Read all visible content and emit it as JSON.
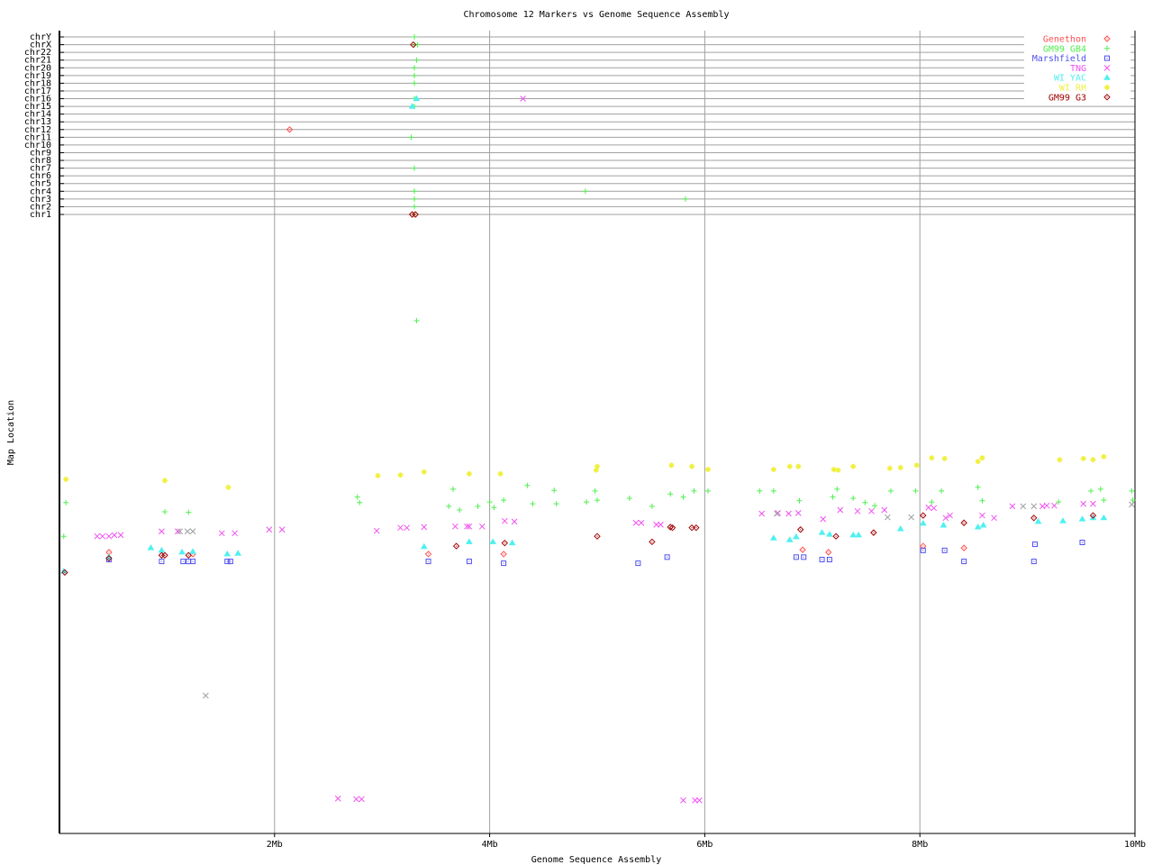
{
  "chart_data": {
    "type": "scatter",
    "title": "Chromosome 12 Markers vs Genome Sequence Assembly",
    "xlabel": "Genome Sequence Assembly",
    "ylabel": "Map Location",
    "xlim": [
      0,
      10
    ],
    "x_unit": "Mb",
    "x_ticks": [
      {
        "value": 2,
        "label": "2Mb"
      },
      {
        "value": 4,
        "label": "4Mb"
      },
      {
        "value": 6,
        "label": "6Mb"
      },
      {
        "value": 8,
        "label": "8Mb"
      },
      {
        "value": 10,
        "label": "10Mb"
      }
    ],
    "chromosome_labels": [
      "chr1",
      "chr2",
      "chr3",
      "chr4",
      "chr5",
      "chr6",
      "chr7",
      "chr8",
      "chr9",
      "chr10",
      "chr11",
      "chr12",
      "chr13",
      "chr14",
      "chr15",
      "chr16",
      "chr17",
      "chr18",
      "chr19",
      "chr20",
      "chr21",
      "chr22",
      "chrX",
      "chrY"
    ],
    "map_location_range": [
      0,
      100
    ],
    "grid": true,
    "legend_placement": "top-right",
    "series": [
      {
        "name": "Genethon",
        "color": "#ff5050",
        "marker": "diamond",
        "chrom_hits": [
          [
            "chr12",
            2.14
          ]
        ],
        "points": [
          [
            0.46,
            45.9
          ],
          [
            1.24,
            45.6
          ],
          [
            3.43,
            45.6
          ],
          [
            4.13,
            45.6
          ],
          [
            6.91,
            46.3
          ],
          [
            7.15,
            45.9
          ],
          [
            8.03,
            46.9
          ],
          [
            8.41,
            46.6
          ]
        ]
      },
      {
        "name": "GM99 GB4",
        "color": "#50f050",
        "marker": "plus",
        "chrom_hits": [
          [
            "chrY",
            3.3
          ],
          [
            "chrX",
            3.3
          ],
          [
            "chrX",
            3.33
          ],
          [
            "chr21",
            3.32
          ],
          [
            "chr20",
            3.3
          ],
          [
            "chr19",
            3.3
          ],
          [
            "chr18",
            3.3
          ],
          [
            "chr16",
            3.3
          ],
          [
            "chr15",
            3.3
          ],
          [
            "chr11",
            3.27
          ],
          [
            "chr7",
            3.3
          ],
          [
            "chr4",
            3.3
          ],
          [
            "chr4",
            4.89
          ],
          [
            "chr3",
            3.3
          ],
          [
            "chr3",
            5.82
          ],
          [
            "chr2",
            3.3
          ],
          [
            "chr1",
            3.3
          ]
        ],
        "points": [
          [
            0.04,
            48.5
          ],
          [
            0.06,
            54
          ],
          [
            0.98,
            52.5
          ],
          [
            1.2,
            52.4
          ],
          [
            2.77,
            54.9
          ],
          [
            2.79,
            54
          ],
          [
            3.62,
            53.4
          ],
          [
            3.72,
            52.8
          ],
          [
            3.66,
            56.2
          ],
          [
            3.89,
            53.4
          ],
          [
            4.0,
            54.1
          ],
          [
            4.04,
            53.2
          ],
          [
            4.13,
            54.4
          ],
          [
            4.35,
            56.8
          ],
          [
            4.4,
            53.8
          ],
          [
            4.62,
            53.8
          ],
          [
            4.6,
            56
          ],
          [
            4.9,
            54.1
          ],
          [
            4.98,
            55.9
          ],
          [
            5.0,
            54.4
          ],
          [
            5.3,
            54.7
          ],
          [
            5.51,
            53.4
          ],
          [
            5.68,
            55.4
          ],
          [
            5.8,
            54.9
          ],
          [
            5.9,
            55.9
          ],
          [
            6.03,
            55.9
          ],
          [
            6.51,
            55.9
          ],
          [
            6.64,
            55.9
          ],
          [
            6.88,
            54.3
          ],
          [
            7.19,
            54.9
          ],
          [
            7.23,
            56.2
          ],
          [
            7.38,
            54.7
          ],
          [
            7.49,
            54
          ],
          [
            7.58,
            53.5
          ],
          [
            7.73,
            55.9
          ],
          [
            7.96,
            55.9
          ],
          [
            8.11,
            54.1
          ],
          [
            8.2,
            55.9
          ],
          [
            8.54,
            56.5
          ],
          [
            8.58,
            54.3
          ],
          [
            9.29,
            54.1
          ],
          [
            9.59,
            55.9
          ],
          [
            9.68,
            56.2
          ],
          [
            9.71,
            54.4
          ],
          [
            9.97,
            55.9
          ],
          [
            9.98,
            54.4
          ],
          [
            3.32,
            83.7
          ]
        ]
      },
      {
        "name": "Marshfield",
        "color": "#5050f0",
        "marker": "square",
        "chrom_hits": [],
        "points": [
          [
            0.46,
            44.7
          ],
          [
            0.95,
            44.4
          ],
          [
            1.15,
            44.4
          ],
          [
            1.2,
            44.4
          ],
          [
            1.24,
            44.4
          ],
          [
            1.56,
            44.4
          ],
          [
            1.59,
            44.4
          ],
          [
            3.43,
            44.4
          ],
          [
            3.81,
            44.4
          ],
          [
            4.13,
            44.1
          ],
          [
            5.38,
            44.1
          ],
          [
            5.65,
            45.1
          ],
          [
            6.85,
            45.1
          ],
          [
            6.92,
            45.1
          ],
          [
            7.09,
            44.7
          ],
          [
            7.16,
            44.7
          ],
          [
            8.03,
            46.2
          ],
          [
            8.23,
            46.2
          ],
          [
            8.41,
            44.4
          ],
          [
            9.06,
            44.4
          ],
          [
            9.07,
            47.2
          ],
          [
            9.51,
            47.5
          ]
        ]
      },
      {
        "name": "TNG",
        "color": "#f050f0",
        "marker": "x",
        "chrom_hits": [
          [
            "chr16",
            4.31
          ]
        ],
        "points": [
          [
            0.35,
            48.5
          ],
          [
            0.4,
            48.5
          ],
          [
            0.46,
            48.5
          ],
          [
            0.51,
            48.7
          ],
          [
            0.57,
            48.7
          ],
          [
            0.95,
            49.3
          ],
          [
            1.1,
            49.3
          ],
          [
            1.51,
            49
          ],
          [
            1.63,
            49
          ],
          [
            1.95,
            49.6
          ],
          [
            2.07,
            49.6
          ],
          [
            2.95,
            49.4
          ],
          [
            3.17,
            49.9
          ],
          [
            3.23,
            49.9
          ],
          [
            3.39,
            50
          ],
          [
            3.68,
            50.1
          ],
          [
            3.79,
            50.1
          ],
          [
            3.81,
            50.1
          ],
          [
            3.93,
            50.1
          ],
          [
            4.14,
            51
          ],
          [
            4.23,
            50.9
          ],
          [
            2.59,
            5.7
          ],
          [
            2.76,
            5.6
          ],
          [
            2.81,
            5.6
          ],
          [
            5.8,
            5.4
          ],
          [
            5.91,
            5.4
          ],
          [
            5.95,
            5.4
          ],
          [
            5.36,
            50.7
          ],
          [
            5.41,
            50.7
          ],
          [
            5.55,
            50.4
          ],
          [
            5.59,
            50.4
          ],
          [
            6.53,
            52.2
          ],
          [
            6.68,
            52.3
          ],
          [
            6.78,
            52.2
          ],
          [
            6.87,
            52.3
          ],
          [
            7.1,
            51.3
          ],
          [
            7.26,
            52.8
          ],
          [
            7.42,
            52.6
          ],
          [
            7.55,
            52.6
          ],
          [
            7.67,
            52.8
          ],
          [
            8.08,
            53.2
          ],
          [
            8.13,
            53.1
          ],
          [
            8.24,
            51.5
          ],
          [
            8.28,
            51.9
          ],
          [
            8.58,
            51.9
          ],
          [
            8.69,
            51.5
          ],
          [
            8.86,
            53.4
          ],
          [
            9.14,
            53.4
          ],
          [
            9.18,
            53.5
          ],
          [
            9.25,
            53.5
          ],
          [
            9.52,
            53.8
          ],
          [
            9.61,
            53.8
          ]
        ]
      },
      {
        "name": "WI YAC",
        "color": "#50f0f0",
        "marker": "triangle",
        "chrom_hits": [
          [
            "chr16",
            3.32
          ],
          [
            "chr15",
            3.28
          ]
        ],
        "points": [
          [
            0.04,
            42.8
          ],
          [
            0.46,
            45.1
          ],
          [
            0.85,
            46.6
          ],
          [
            0.95,
            46.2
          ],
          [
            1.14,
            45.9
          ],
          [
            1.24,
            46
          ],
          [
            1.56,
            45.6
          ],
          [
            1.66,
            45.7
          ],
          [
            3.39,
            46.8
          ],
          [
            3.81,
            47.6
          ],
          [
            4.03,
            47.6
          ],
          [
            4.21,
            47.4
          ],
          [
            6.64,
            48.2
          ],
          [
            6.79,
            47.9
          ],
          [
            6.85,
            48.4
          ],
          [
            7.09,
            49.1
          ],
          [
            7.16,
            48.8
          ],
          [
            7.38,
            48.7
          ],
          [
            7.43,
            48.7
          ],
          [
            7.82,
            49.7
          ],
          [
            8.03,
            50.6
          ],
          [
            8.22,
            50.3
          ],
          [
            8.54,
            50
          ],
          [
            8.59,
            50.3
          ],
          [
            9.1,
            50.9
          ],
          [
            9.33,
            51
          ],
          [
            9.51,
            51.3
          ],
          [
            9.61,
            51.5
          ],
          [
            9.71,
            51.5
          ]
        ]
      },
      {
        "name": "WI RH",
        "color": "#f0f040",
        "marker": "asterisk",
        "chrom_hits": [],
        "points": [
          [
            0.06,
            57.8
          ],
          [
            0.98,
            57.6
          ],
          [
            1.57,
            56.5
          ],
          [
            2.96,
            58.4
          ],
          [
            3.17,
            58.5
          ],
          [
            3.39,
            59
          ],
          [
            3.81,
            58.7
          ],
          [
            4.1,
            58.7
          ],
          [
            4.99,
            59.3
          ],
          [
            5.0,
            59.9
          ],
          [
            5.69,
            60.1
          ],
          [
            5.88,
            59.9
          ],
          [
            6.03,
            59.4
          ],
          [
            6.64,
            59.4
          ],
          [
            6.79,
            59.9
          ],
          [
            6.87,
            59.9
          ],
          [
            7.2,
            59.4
          ],
          [
            7.24,
            59.3
          ],
          [
            7.38,
            59.9
          ],
          [
            7.72,
            59.6
          ],
          [
            7.82,
            59.7
          ],
          [
            7.97,
            60.1
          ],
          [
            8.11,
            61.3
          ],
          [
            8.23,
            61.2
          ],
          [
            8.54,
            60.7
          ],
          [
            8.58,
            61.3
          ],
          [
            9.3,
            61
          ],
          [
            9.52,
            61.2
          ],
          [
            9.61,
            61
          ],
          [
            9.71,
            61.5
          ]
        ]
      },
      {
        "name": "GM99 G3",
        "color": "#a00000",
        "marker": "diamond",
        "chrom_hits": [
          [
            "chr1",
            3.28
          ],
          [
            "chr1",
            3.31
          ],
          [
            "chrX",
            3.29
          ]
        ],
        "points": [
          [
            0.05,
            42.6
          ],
          [
            0.46,
            44.9
          ],
          [
            0.95,
            45.4
          ],
          [
            0.98,
            45.4
          ],
          [
            1.2,
            45.4
          ],
          [
            3.69,
            46.9
          ],
          [
            4.14,
            47.4
          ],
          [
            5.0,
            48.5
          ],
          [
            5.51,
            47.6
          ],
          [
            5.68,
            50
          ],
          [
            5.7,
            49.9
          ],
          [
            5.88,
            49.9
          ],
          [
            5.92,
            49.9
          ],
          [
            6.89,
            49.6
          ],
          [
            7.22,
            48.5
          ],
          [
            7.57,
            49.1
          ],
          [
            8.03,
            51.9
          ],
          [
            8.41,
            50.7
          ],
          [
            9.06,
            51.5
          ],
          [
            9.61,
            51.9
          ]
        ]
      },
      {
        "color": "#a0a0a0",
        "marker": "x",
        "chrom_hits": [
          [
            "chr22",
            9.61
          ]
        ],
        "points": [
          [
            1.36,
            22.5
          ],
          [
            1.12,
            49.3
          ],
          [
            1.19,
            49.3
          ],
          [
            1.24,
            49.3
          ],
          [
            6.67,
            52.2
          ],
          [
            7.7,
            51.6
          ],
          [
            7.92,
            51.6
          ],
          [
            8.96,
            53.4
          ],
          [
            9.06,
            53.4
          ],
          [
            9.97,
            53.7
          ]
        ]
      }
    ]
  }
}
